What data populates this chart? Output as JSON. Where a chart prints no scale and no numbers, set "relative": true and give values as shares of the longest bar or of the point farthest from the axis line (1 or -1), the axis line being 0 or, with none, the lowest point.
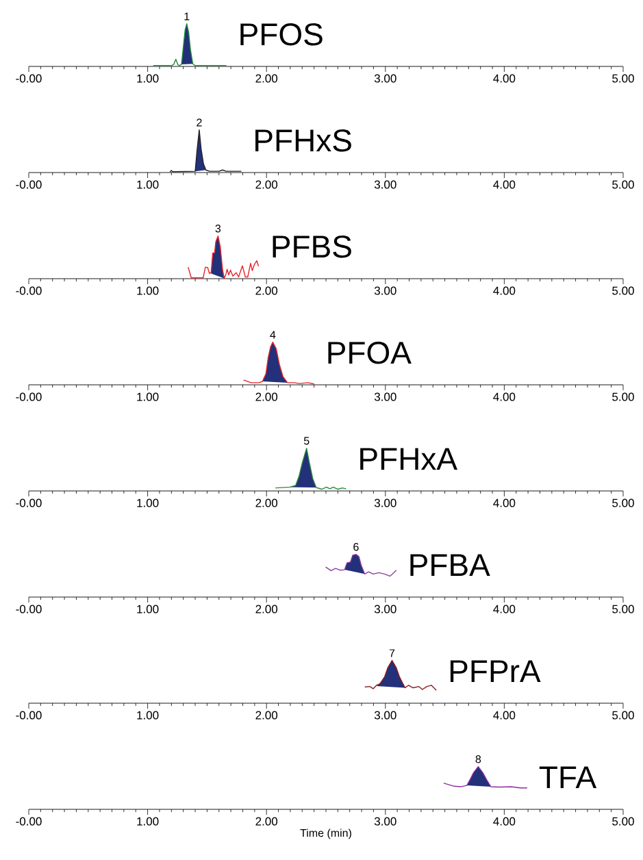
{
  "chart_data": [
    {
      "type": "line",
      "relative": true,
      "title": "PFOS",
      "xlim": [
        0,
        5
      ],
      "xticks": [
        {
          "value": 0,
          "label": "-0.00"
        },
        {
          "value": 1,
          "label": "1.00"
        },
        {
          "value": 2,
          "label": "2.00"
        },
        {
          "value": 3,
          "label": "3.00"
        },
        {
          "value": 4,
          "label": "4.00"
        },
        {
          "value": 5,
          "label": "5.00"
        }
      ],
      "annotations": [
        {
          "text": "1",
          "x": 1.329,
          "y": 1
        }
      ],
      "series": [
        {
          "color": "#1e8a3c",
          "x": [
            1.05,
            1.2,
            1.22,
            1.237,
            1.255,
            1.27,
            1.285,
            1.3,
            1.315,
            1.329,
            1.345,
            1.36,
            1.38,
            1.4,
            1.66
          ],
          "values": [
            0.02,
            0.02,
            0.05,
            0.17,
            0.04,
            0.02,
            0.05,
            0.45,
            0.85,
            1,
            0.8,
            0.4,
            0.06,
            0.02,
            0.02
          ]
        },
        {
          "type": "area",
          "color": "#23307a",
          "x": [
            1.285,
            1.3,
            1.315,
            1.329,
            1.345,
            1.36,
            1.38
          ],
          "values": [
            0.05,
            0.45,
            0.85,
            1,
            0.8,
            0.4,
            0.06
          ]
        }
      ]
    },
    {
      "type": "line",
      "relative": true,
      "title": "PFHxS",
      "xlim": [
        0,
        5
      ],
      "xticks": [
        {
          "value": 0,
          "label": "-0.00"
        },
        {
          "value": 1,
          "label": "1.00"
        },
        {
          "value": 2,
          "label": "2.00"
        },
        {
          "value": 3,
          "label": "3.00"
        },
        {
          "value": 4,
          "label": "4.00"
        },
        {
          "value": 5,
          "label": "5.00"
        }
      ],
      "annotations": [
        {
          "text": "2",
          "x": 1.434,
          "y": 1
        }
      ],
      "series": [
        {
          "color": "#222222",
          "x": [
            1.19,
            1.2,
            1.21,
            1.4,
            1.415,
            1.434,
            1.45,
            1.47,
            1.49,
            1.52,
            1.6,
            1.63,
            1.66,
            1.785
          ],
          "values": [
            0.02,
            0.05,
            0.02,
            0.03,
            0.5,
            1,
            0.55,
            0.2,
            0.06,
            0.03,
            0.03,
            0.06,
            0.03,
            0.03
          ]
        },
        {
          "type": "area",
          "color": "#23307a",
          "x": [
            1.4,
            1.415,
            1.434,
            1.45,
            1.47,
            1.49
          ],
          "values": [
            0.03,
            0.5,
            1,
            0.55,
            0.2,
            0.06
          ]
        }
      ]
    },
    {
      "type": "line",
      "relative": true,
      "title": "PFBS",
      "xlim": [
        0,
        5
      ],
      "xticks": [
        {
          "value": 0,
          "label": "-0.00"
        },
        {
          "value": 1,
          "label": "1.00"
        },
        {
          "value": 2,
          "label": "2.00"
        },
        {
          "value": 3,
          "label": "3.00"
        },
        {
          "value": 4,
          "label": "4.00"
        },
        {
          "value": 5,
          "label": "5.00"
        }
      ],
      "annotations": [
        {
          "text": "3",
          "x": 1.592,
          "y": 1
        }
      ],
      "series": [
        {
          "color": "#e8242a",
          "x": [
            1.342,
            1.367,
            1.467,
            1.486,
            1.505,
            1.52,
            1.534,
            1.548,
            1.563,
            1.573,
            1.592,
            1.611,
            1.63,
            1.644,
            1.659,
            1.669,
            1.682,
            1.697,
            1.717,
            1.745,
            1.765,
            1.797,
            1.822,
            1.842,
            1.866,
            1.88,
            1.899,
            1.918,
            1.932
          ],
          "values": [
            0.26,
            0.02,
            0.02,
            0.27,
            0.26,
            0.12,
            0.15,
            0.6,
            0.6,
            0.86,
            1,
            0.75,
            0.22,
            0.01,
            0.11,
            0.22,
            0.09,
            0.2,
            0.06,
            0.14,
            0.04,
            0.3,
            0.04,
            0.04,
            0.36,
            0.19,
            0.34,
            0.42,
            0.3
          ]
        },
        {
          "type": "area",
          "color": "#23307a",
          "x": [
            1.534,
            1.548,
            1.563,
            1.573,
            1.592,
            1.611,
            1.63,
            1.644
          ],
          "values": [
            0.12,
            0.6,
            0.6,
            0.86,
            1,
            0.75,
            0.22,
            0.01
          ]
        }
      ]
    },
    {
      "type": "line",
      "relative": true,
      "title": "PFOA",
      "xlim": [
        0,
        5
      ],
      "xticks": [
        {
          "value": 0,
          "label": "-0.00"
        },
        {
          "value": 1,
          "label": "1.00"
        },
        {
          "value": 2,
          "label": "2.00"
        },
        {
          "value": 3,
          "label": "3.00"
        },
        {
          "value": 4,
          "label": "4.00"
        },
        {
          "value": 5,
          "label": "5.00"
        }
      ],
      "annotations": [
        {
          "text": "4",
          "x": 2.053,
          "y": 1
        }
      ],
      "series": [
        {
          "color": "#e8242a",
          "x": [
            1.809,
            1.87,
            1.937,
            1.966,
            1.995,
            2.014,
            2.034,
            2.053,
            2.081,
            2.11,
            2.139,
            2.177,
            2.235,
            2.274,
            2.35,
            2.398
          ],
          "values": [
            0.11,
            0.05,
            0.05,
            0.08,
            0.26,
            0.64,
            0.89,
            1,
            0.85,
            0.46,
            0.19,
            0.05,
            0.05,
            0.03,
            0.05,
            0.02
          ]
        },
        {
          "type": "area",
          "color": "#23307a",
          "x": [
            1.966,
            1.995,
            2.014,
            2.034,
            2.053,
            2.081,
            2.11,
            2.139,
            2.177
          ],
          "values": [
            0.08,
            0.26,
            0.64,
            0.89,
            1,
            0.85,
            0.46,
            0.19,
            0.05
          ]
        }
      ]
    },
    {
      "type": "line",
      "relative": true,
      "title": "PFHxA",
      "xlim": [
        0,
        5
      ],
      "xticks": [
        {
          "value": 0,
          "label": "-0.00"
        },
        {
          "value": 1,
          "label": "1.00"
        },
        {
          "value": 2,
          "label": "2.00"
        },
        {
          "value": 3,
          "label": "3.00"
        },
        {
          "value": 4,
          "label": "4.00"
        },
        {
          "value": 5,
          "label": "5.00"
        }
      ],
      "annotations": [
        {
          "text": "5",
          "x": 2.337,
          "y": 1
        }
      ],
      "series": [
        {
          "color": "#2a8a3a",
          "x": [
            2.078,
            2.197,
            2.245,
            2.274,
            2.302,
            2.337,
            2.36,
            2.389,
            2.418,
            2.465,
            2.504,
            2.533,
            2.562,
            2.6,
            2.638,
            2.667
          ],
          "values": [
            0.07,
            0.09,
            0.13,
            0.35,
            0.67,
            1,
            0.67,
            0.29,
            0.08,
            0.04,
            0.09,
            0.05,
            0.09,
            0.04,
            0.07,
            0.05
          ]
        },
        {
          "type": "area",
          "color": "#23307a",
          "x": [
            2.197,
            2.245,
            2.274,
            2.302,
            2.337,
            2.36,
            2.389,
            2.418
          ],
          "values": [
            0.09,
            0.13,
            0.35,
            0.67,
            1,
            0.67,
            0.29,
            0.08
          ]
        }
      ]
    },
    {
      "type": "line",
      "relative": true,
      "title": "PFBA",
      "xlim": [
        0,
        5
      ],
      "xticks": [
        {
          "value": 0,
          "label": "-0.00"
        },
        {
          "value": 1,
          "label": "1.00"
        },
        {
          "value": 2,
          "label": "2.00"
        },
        {
          "value": 3,
          "label": "3.00"
        },
        {
          "value": 4,
          "label": "4.00"
        },
        {
          "value": 5,
          "label": "5.00"
        }
      ],
      "annotations": [
        {
          "text": "6",
          "x": 2.753,
          "y": 1
        }
      ],
      "series": [
        {
          "color": "#8e3a9e",
          "x": [
            2.5,
            2.542,
            2.581,
            2.619,
            2.657,
            2.677,
            2.706,
            2.725,
            2.753,
            2.777,
            2.796,
            2.826,
            2.859,
            2.897,
            2.945,
            2.993,
            3.038,
            3.06,
            3.089
          ],
          "values": [
            0.7,
            0.62,
            0.67,
            0.63,
            0.64,
            0.8,
            0.82,
            0.98,
            1,
            0.95,
            0.75,
            0.54,
            0.59,
            0.54,
            0.57,
            0.54,
            0.49,
            0.54,
            0.62
          ]
        },
        {
          "type": "area",
          "color": "#23307a",
          "x": [
            2.657,
            2.677,
            2.706,
            2.725,
            2.753,
            2.777,
            2.796,
            2.826
          ],
          "values": [
            0.64,
            0.8,
            0.82,
            0.98,
            1,
            0.95,
            0.75,
            0.54
          ]
        }
      ]
    },
    {
      "type": "line",
      "relative": true,
      "title": "PFPrA",
      "xlim": [
        0,
        5
      ],
      "xticks": [
        {
          "value": 0,
          "label": "-0.00"
        },
        {
          "value": 1,
          "label": "1.00"
        },
        {
          "value": 2,
          "label": "2.00"
        },
        {
          "value": 3,
          "label": "3.00"
        },
        {
          "value": 4,
          "label": "4.00"
        },
        {
          "value": 5,
          "label": "5.00"
        }
      ],
      "annotations": [
        {
          "text": "7",
          "x": 3.056,
          "y": 1
        }
      ],
      "series": [
        {
          "color": "#8b1a1a",
          "x": [
            2.83,
            2.869,
            2.898,
            2.926,
            2.955,
            2.994,
            3.022,
            3.056,
            3.09,
            3.118,
            3.147,
            3.166,
            3.195,
            3.233,
            3.282,
            3.311,
            3.349,
            3.387,
            3.426
          ],
          "values": [
            0.38,
            0.39,
            0.34,
            0.42,
            0.46,
            0.62,
            0.84,
            1,
            0.84,
            0.62,
            0.46,
            0.36,
            0.42,
            0.36,
            0.39,
            0.32,
            0.39,
            0.42,
            0.31
          ]
        },
        {
          "type": "area",
          "color": "#23307a",
          "x": [
            2.926,
            2.955,
            2.994,
            3.022,
            3.056,
            3.09,
            3.118,
            3.147,
            3.166
          ],
          "values": [
            0.4,
            0.46,
            0.62,
            0.84,
            1,
            0.84,
            0.62,
            0.46,
            0.36
          ]
        }
      ]
    },
    {
      "type": "line",
      "relative": true,
      "title": "TFA",
      "xlabel": "Time (min)",
      "xlim": [
        0,
        5
      ],
      "xticks": [
        {
          "value": 0,
          "label": "-0.00"
        },
        {
          "value": 1,
          "label": "1.00"
        },
        {
          "value": 2,
          "label": "2.00"
        },
        {
          "value": 3,
          "label": "3.00"
        },
        {
          "value": 4,
          "label": "4.00"
        },
        {
          "value": 5,
          "label": "5.00"
        }
      ],
      "annotations": [
        {
          "text": "8",
          "x": 3.781,
          "y": 1
        }
      ],
      "series": [
        {
          "color": "#8e2a9e",
          "x": [
            3.493,
            3.579,
            3.637,
            3.685,
            3.713,
            3.742,
            3.781,
            3.819,
            3.852,
            3.887,
            3.963,
            4.059,
            4.136,
            4.19
          ],
          "values": [
            0.61,
            0.54,
            0.53,
            0.56,
            0.7,
            0.86,
            1,
            0.86,
            0.69,
            0.53,
            0.52,
            0.53,
            0.5,
            0.5
          ]
        },
        {
          "type": "area",
          "color": "#23307a",
          "x": [
            3.685,
            3.713,
            3.742,
            3.781,
            3.819,
            3.852,
            3.887
          ],
          "values": [
            0.56,
            0.7,
            0.86,
            1,
            0.86,
            0.69,
            0.53
          ]
        }
      ]
    }
  ]
}
